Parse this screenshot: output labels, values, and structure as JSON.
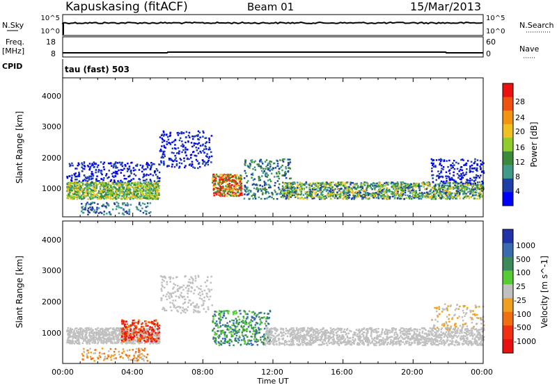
{
  "header": {
    "station": "Kapuskasing (fitACF)",
    "beam": "Beam 01",
    "date": "15/Mar/2013"
  },
  "strips": {
    "nsky_label": "N.Sky",
    "nsearch_label": "N.Search",
    "freq_label_1": "Freq.",
    "freq_label_2": "[MHz]",
    "nave_label": "Nave",
    "cpid_label": "CPID",
    "cpid_value": "tau (fast) 503",
    "nsky_ticks": [
      "10^5",
      "10^0"
    ],
    "nsearch_ticks": [
      "10^5",
      "10^0"
    ],
    "freq_ticks": [
      "18",
      "8"
    ],
    "nave_ticks": [
      "60",
      "0"
    ]
  },
  "chart_data": [
    {
      "type": "heatmap",
      "title": "",
      "xlabel": "Time UT",
      "ylabel": "Slant Range [km]",
      "x_ticks": [
        "00:00",
        "04:00",
        "08:00",
        "12:00",
        "16:00",
        "20:00",
        "00:00"
      ],
      "y_ticks": [
        "1000",
        "2000",
        "3000",
        "4000"
      ],
      "colorbar_label": "Power [dB]",
      "colorbar_ticks": [
        "4",
        "8",
        "12",
        "16",
        "20",
        "24",
        "28"
      ],
      "colorbar_colors": [
        "#0000ff",
        "#1f3fa8",
        "#3f9a8a",
        "#3a8a3a",
        "#8fce2a",
        "#f0c020",
        "#f39410",
        "#f05010",
        "#ee1010"
      ]
    },
    {
      "type": "heatmap",
      "title": "",
      "xlabel": "Time UT",
      "ylabel": "Slant Range [km]",
      "x_ticks": [
        "00:00",
        "04:00",
        "08:00",
        "12:00",
        "16:00",
        "20:00",
        "00:00"
      ],
      "y_ticks": [
        "1000",
        "2000",
        "3000",
        "4000"
      ],
      "colorbar_label": "Velocity [m s^-1]",
      "colorbar_ticks": [
        "1000",
        "500",
        "100",
        "25",
        "-25",
        "-100",
        "-500",
        "-1000"
      ],
      "colorbar_colors": [
        "#2233aa",
        "#3a6ab0",
        "#3a8a5a",
        "#55cc33",
        "#c0c0c0",
        "#f0a020",
        "#f07010",
        "#f03010",
        "#e81010"
      ]
    }
  ]
}
